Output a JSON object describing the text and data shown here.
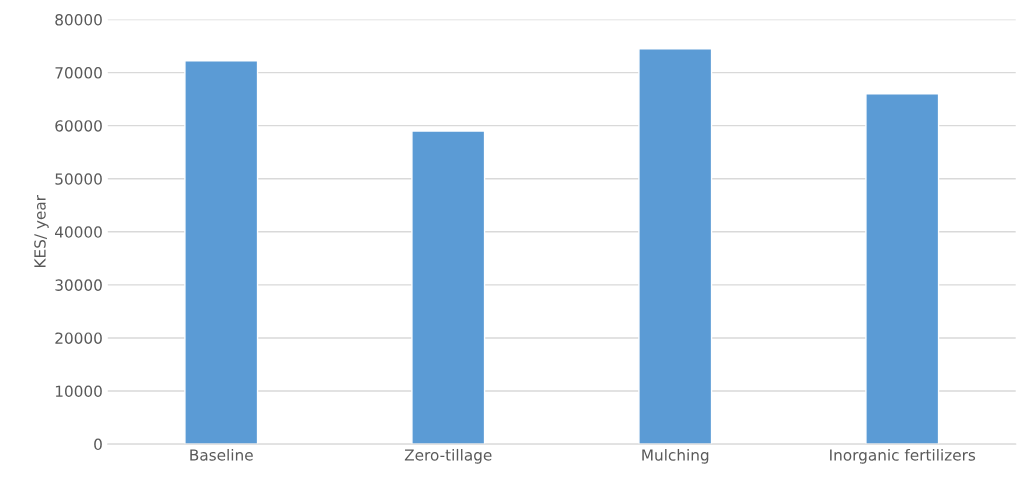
{
  "chart_data": {
    "type": "bar",
    "ylabel": "KES/ year",
    "categories": [
      "Baseline",
      "Zero-tillage",
      "Mulching",
      "Inorganic fertilizers"
    ],
    "values": [
      72200,
      59000,
      74500,
      66000
    ],
    "color": "#5b9bd5",
    "ylim": [
      0,
      80000
    ],
    "yticks": [
      0,
      10000,
      20000,
      30000,
      40000,
      50000,
      60000,
      70000,
      80000
    ],
    "grid": "y",
    "legend": false
  }
}
